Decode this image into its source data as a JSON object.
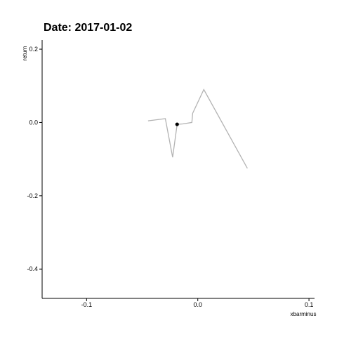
{
  "chart_data": {
    "type": "line",
    "title": "Date: 2017-01-02",
    "xlabel": "xbarminus",
    "ylabel": "return",
    "xlim": [
      -0.14,
      0.105
    ],
    "ylim": [
      -0.48,
      0.225
    ],
    "x_ticks": [
      -0.1,
      0.0,
      0.1
    ],
    "x_tick_labels": [
      "-0.1",
      "0.0",
      "0.1"
    ],
    "y_ticks": [
      -0.4,
      -0.2,
      0.0,
      0.2
    ],
    "y_tick_labels": [
      "-0.4",
      "-0.2",
      "0.0",
      "0.2"
    ],
    "grid": false,
    "series": [
      {
        "color": "#b3b3b3",
        "x": [
          -0.0447,
          -0.0292,
          -0.0226,
          -0.0186,
          -0.0135,
          -0.0053,
          -0.0046,
          0.0054,
          0.0446
        ],
        "y": [
          0.0045,
          0.0105,
          -0.095,
          -0.005,
          -0.004,
          0.0,
          0.025,
          0.09,
          -0.125
        ]
      }
    ],
    "highlight_point": {
      "x": -0.0186,
      "y": -0.005,
      "color": "#000000"
    }
  }
}
